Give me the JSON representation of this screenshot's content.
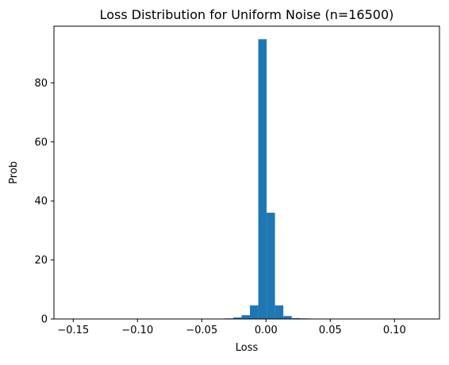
{
  "chart_data": {
    "type": "bar",
    "title": "Loss Distribution for Uniform Noise (n=16500)",
    "xlabel": "Loss",
    "ylabel": "Prob",
    "xlim": [
      -0.165,
      0.135
    ],
    "ylim": [
      0,
      99.2
    ],
    "x_ticks": [
      -0.15,
      -0.1,
      -0.05,
      0.0,
      0.05,
      0.1
    ],
    "x_tick_labels": [
      "−0.15",
      "−0.10",
      "−0.05",
      "0.00",
      "0.05",
      "0.10"
    ],
    "y_ticks": [
      0,
      20,
      40,
      60,
      80
    ],
    "y_tick_labels": [
      "0",
      "20",
      "40",
      "60",
      "80"
    ],
    "grid": false,
    "color": "#1f77b4",
    "bins": [
      {
        "x0": -0.045,
        "x1": -0.0385,
        "value": 0.1
      },
      {
        "x0": -0.0385,
        "x1": -0.032,
        "value": 0.1
      },
      {
        "x0": -0.032,
        "x1": -0.0255,
        "value": 0.2
      },
      {
        "x0": -0.0255,
        "x1": -0.019,
        "value": 0.5
      },
      {
        "x0": -0.019,
        "x1": -0.0125,
        "value": 1.3
      },
      {
        "x0": -0.0125,
        "x1": -0.006,
        "value": 4.6
      },
      {
        "x0": -0.006,
        "x1": 0.0005,
        "value": 94.8
      },
      {
        "x0": 0.0005,
        "x1": 0.007,
        "value": 36.0
      },
      {
        "x0": 0.007,
        "x1": 0.0135,
        "value": 4.6
      },
      {
        "x0": 0.0135,
        "x1": 0.02,
        "value": 1.0
      },
      {
        "x0": 0.02,
        "x1": 0.0265,
        "value": 0.3
      },
      {
        "x0": 0.0265,
        "x1": 0.033,
        "value": 0.2
      },
      {
        "x0": 0.033,
        "x1": 0.0395,
        "value": 0.1
      }
    ]
  }
}
